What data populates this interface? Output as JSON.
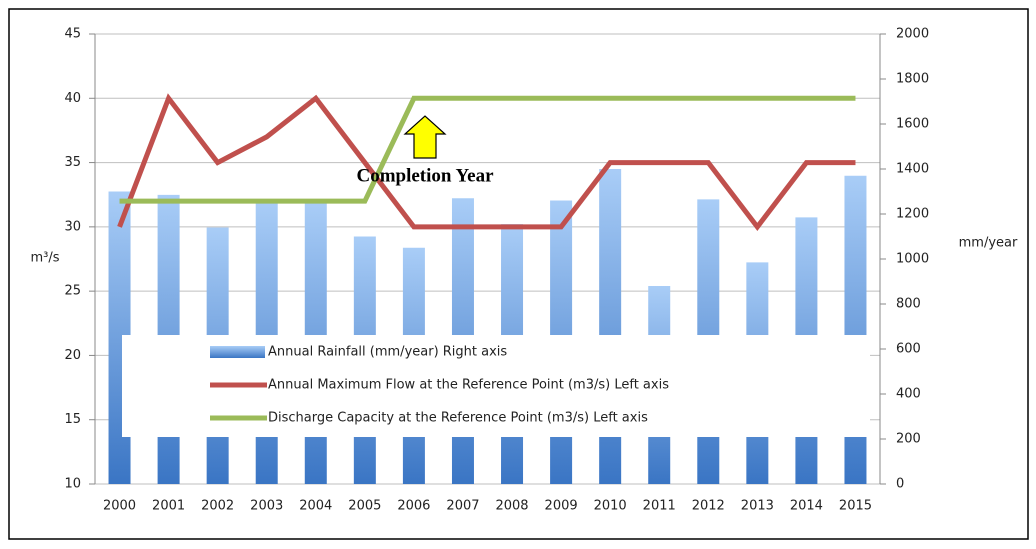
{
  "chart_data": {
    "type": "combo",
    "categories": [
      "2000",
      "2001",
      "2002",
      "2003",
      "2004",
      "2005",
      "2006",
      "2007",
      "2008",
      "2009",
      "2010",
      "2011",
      "2012",
      "2013",
      "2014",
      "2015"
    ],
    "series": [
      {
        "name": "Annual Rainfall (mm/year) Right axis",
        "type": "bar",
        "axis": "y2",
        "color": "#4a86d4",
        "values": [
          1300,
          1285,
          1140,
          1250,
          1250,
          1100,
          1050,
          1270,
          1155,
          1260,
          1400,
          880,
          1265,
          985,
          1185,
          1370
        ]
      },
      {
        "name": "Annual Maximum Flow at the Reference Point (m3/s) Left axis",
        "type": "line",
        "color": "#c0504d",
        "values": [
          30,
          40,
          35,
          37,
          40,
          35,
          30,
          30,
          30,
          30,
          35,
          35,
          35,
          30,
          35,
          35
        ]
      },
      {
        "name": "Discharge Capacity at the Reference Point  (m3/s) Left axis",
        "type": "line",
        "color": "#9bbb59",
        "values": [
          32,
          32,
          32,
          32,
          32,
          32,
          40,
          40,
          40,
          40,
          40,
          40,
          40,
          40,
          40,
          40
        ]
      }
    ],
    "ylabel": "m³/s",
    "y2label": "mm/year",
    "ylim": [
      10,
      45
    ],
    "yticks": [
      10,
      15,
      20,
      25,
      30,
      35,
      40,
      45
    ],
    "y2lim": [
      0,
      2000
    ],
    "y2ticks": [
      0,
      200,
      400,
      600,
      800,
      1000,
      1200,
      1400,
      1600,
      1800,
      2000
    ],
    "grid": true,
    "annotation": "Completion Year"
  }
}
